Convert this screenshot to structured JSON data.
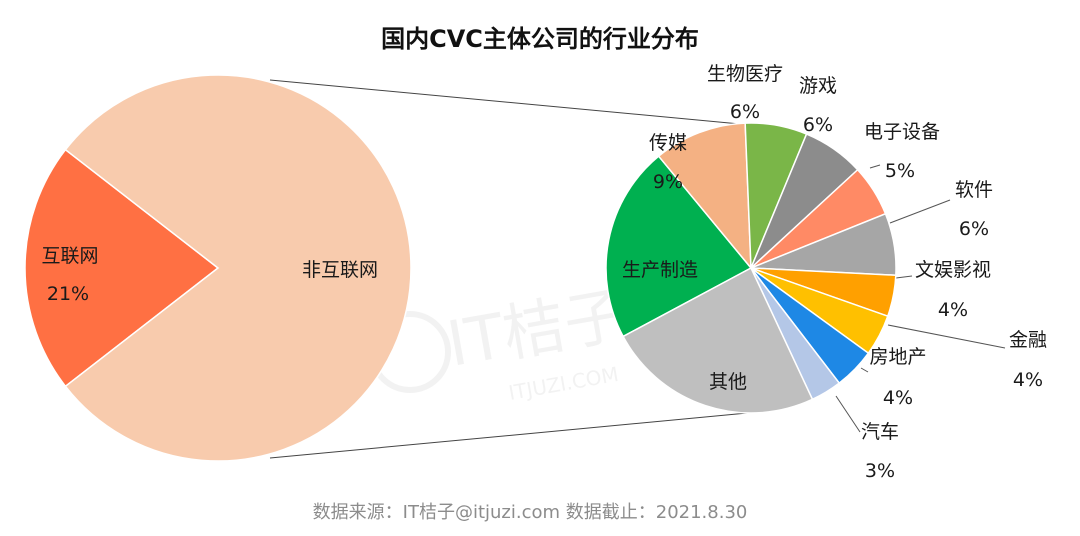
{
  "chart_data": [
    {
      "type": "pie",
      "title": "国内CVC主体公司的行业分布",
      "slices": [
        {
          "name": "互联网",
          "value": 21,
          "value_label": "21%",
          "color": "#ff7043"
        },
        {
          "name": "非互联网",
          "value": 79,
          "value_label": "",
          "color": "#f8cbad"
        }
      ]
    },
    {
      "type": "pie",
      "title": "",
      "slices": [
        {
          "name": "生产制造",
          "value": 19,
          "value_label": "",
          "color": "#00b050"
        },
        {
          "name": "传媒",
          "value": 9,
          "value_label": "9%",
          "color": "#f4b183"
        },
        {
          "name": "生物医疗",
          "value": 6,
          "value_label": "6%",
          "color": "#7ab648"
        },
        {
          "name": "游戏",
          "value": 6,
          "value_label": "6%",
          "color": "#8c8c8c"
        },
        {
          "name": "电子设备",
          "value": 5,
          "value_label": "5%",
          "color": "#ff8a65"
        },
        {
          "name": "软件",
          "value": 6,
          "value_label": "6%",
          "color": "#a6a6a6"
        },
        {
          "name": "文娱影视",
          "value": 4,
          "value_label": "4%",
          "color": "#ffa000"
        },
        {
          "name": "金融",
          "value": 4,
          "value_label": "4%",
          "color": "#ffc000"
        },
        {
          "name": "房地产",
          "value": 4,
          "value_label": "4%",
          "color": "#1e88e5"
        },
        {
          "name": "汽车",
          "value": 3,
          "value_label": "3%",
          "color": "#b4c7e7"
        },
        {
          "name": "其他",
          "value": 21,
          "value_label": "",
          "color": "#bfbfbf"
        }
      ]
    }
  ],
  "footer": {
    "source": "数据来源：IT桔子@itjuzi.com  数据截止：2021.8.30"
  },
  "watermark": {
    "brand": "IT桔子",
    "domain": "ITJUZI.COM"
  }
}
